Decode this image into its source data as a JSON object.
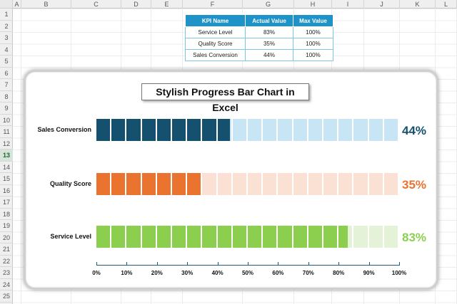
{
  "sheet": {
    "columns": [
      "A",
      "B",
      "C",
      "D",
      "E",
      "F",
      "G",
      "H",
      "I",
      "J",
      "K",
      "L"
    ],
    "rows": [
      "1",
      "2",
      "3",
      "4",
      "5",
      "6",
      "7",
      "8",
      "9",
      "10",
      "11",
      "12",
      "13",
      "14",
      "15",
      "16",
      "17",
      "18",
      "19",
      "20",
      "21",
      "22",
      "23",
      "24",
      "25"
    ],
    "selected_row": "13"
  },
  "kpi_table": {
    "headers": [
      "KPI Name",
      "Actual Value",
      "Max Value"
    ],
    "rows": [
      [
        "Service Level",
        "83%",
        "100%"
      ],
      [
        "Quality Score",
        "35%",
        "100%"
      ],
      [
        "Sales Conversion",
        "44%",
        "100%"
      ]
    ]
  },
  "chart_data": {
    "type": "bar",
    "title": "Stylish Progress Bar Chart in Excel",
    "orientation": "horizontal",
    "style": "segmented progress bars",
    "categories": [
      "Sales Conversion",
      "Quality Score",
      "Service Level"
    ],
    "values": [
      44,
      35,
      83
    ],
    "max": 100,
    "value_labels": [
      "44%",
      "35%",
      "83%"
    ],
    "colors": [
      "#15506f",
      "#e9732f",
      "#8ccf4f"
    ],
    "track_colors": [
      "#c7e5f5",
      "#fbe1d4",
      "#e4f3d8"
    ],
    "x_ticks": [
      "0%",
      "10%",
      "20%",
      "30%",
      "40%",
      "50%",
      "60%",
      "70%",
      "80%",
      "90%",
      "100%"
    ],
    "xlim": [
      0,
      100
    ],
    "segments": 20
  }
}
